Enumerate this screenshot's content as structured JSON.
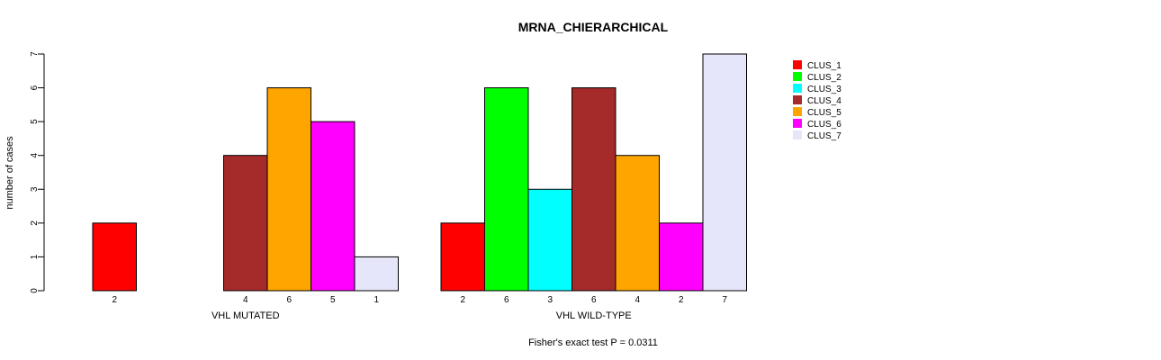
{
  "chart_data": {
    "type": "bar",
    "title": "MRNA_CHIERARCHICAL",
    "ylabel": "number of cases",
    "footnote": "Fisher's exact test P = 0.0311",
    "ylim": [
      0,
      7
    ],
    "yticks": [
      0,
      1,
      2,
      3,
      4,
      5,
      6,
      7
    ],
    "legend_position": "top-right",
    "series": [
      {
        "name": "CLUS_1",
        "color": "#ff0000"
      },
      {
        "name": "CLUS_2",
        "color": "#00ff00"
      },
      {
        "name": "CLUS_3",
        "color": "#00ffff"
      },
      {
        "name": "CLUS_4",
        "color": "#a52a2a"
      },
      {
        "name": "CLUS_5",
        "color": "#ffa500"
      },
      {
        "name": "CLUS_6",
        "color": "#ff00ff"
      },
      {
        "name": "CLUS_7",
        "color": "#e6e6fa"
      }
    ],
    "groups": [
      {
        "name": "VHL MUTATED",
        "values": [
          2,
          0,
          0,
          4,
          6,
          5,
          1
        ],
        "labels": [
          "2",
          "",
          "",
          "4",
          "6",
          "5",
          "1"
        ]
      },
      {
        "name": "VHL WILD-TYPE",
        "values": [
          2,
          6,
          3,
          6,
          4,
          2,
          7
        ],
        "labels": [
          "2",
          "6",
          "3",
          "6",
          "4",
          "2",
          "7"
        ]
      }
    ]
  }
}
